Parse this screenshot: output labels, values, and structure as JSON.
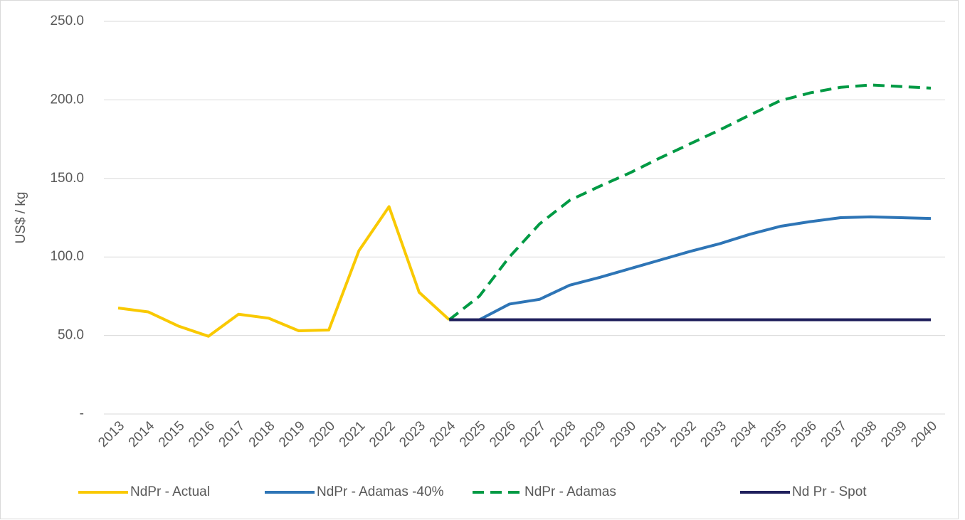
{
  "chart_data": {
    "type": "line",
    "y_label": "US$ / kg",
    "categories": [
      "2013",
      "2014",
      "2015",
      "2016",
      "2017",
      "2018",
      "2019",
      "2020",
      "2021",
      "2022",
      "2023",
      "2024",
      "2025",
      "2026",
      "2027",
      "2028",
      "2029",
      "2030",
      "2031",
      "2032",
      "2033",
      "2034",
      "2035",
      "2036",
      "2037",
      "2038",
      "2039",
      "2040"
    ],
    "series": [
      {
        "name": "NdPr - Actual",
        "color": "#F9C900",
        "dashed": false,
        "values": [
          67.5,
          65,
          56,
          49.5,
          63.5,
          61,
          53,
          53.5,
          104,
          132,
          77.5,
          60,
          null,
          null,
          null,
          null,
          null,
          null,
          null,
          null,
          null,
          null,
          null,
          null,
          null,
          null,
          null,
          null
        ]
      },
      {
        "name": "NdPr - Adamas -40%",
        "color": "#2E75B6",
        "dashed": false,
        "values": [
          null,
          null,
          null,
          null,
          null,
          null,
          null,
          null,
          null,
          null,
          null,
          60,
          60,
          70,
          73,
          82,
          87,
          92.5,
          98,
          103.5,
          108.5,
          114.5,
          119.5,
          122.5,
          125,
          125.5,
          125,
          124.5
        ]
      },
      {
        "name": "NdPr - Adamas",
        "color": "#009A44",
        "dashed": true,
        "values": [
          null,
          null,
          null,
          null,
          null,
          null,
          null,
          null,
          null,
          null,
          null,
          60,
          75,
          100,
          121,
          136,
          145,
          153.5,
          163,
          172,
          181,
          190.5,
          199.5,
          204.5,
          208,
          209.5,
          208.5,
          207.5
        ]
      },
      {
        "name": "Nd Pr - Spot",
        "color": "#1F1F5C",
        "dashed": false,
        "values": [
          null,
          null,
          null,
          null,
          null,
          null,
          null,
          null,
          null,
          null,
          null,
          60,
          60,
          60,
          60,
          60,
          60,
          60,
          60,
          60,
          60,
          60,
          60,
          60,
          60,
          60,
          60,
          60
        ]
      }
    ],
    "ylim": [
      0,
      250
    ],
    "yticks": [
      {
        "value": 0,
        "label": "-"
      },
      {
        "value": 50,
        "label": "50.0"
      },
      {
        "value": 100,
        "label": "100.0"
      },
      {
        "value": 150,
        "label": "150.0"
      },
      {
        "value": 200,
        "label": "200.0"
      },
      {
        "value": 250,
        "label": "250.0"
      }
    ],
    "grid": true,
    "legend": "bottom"
  }
}
